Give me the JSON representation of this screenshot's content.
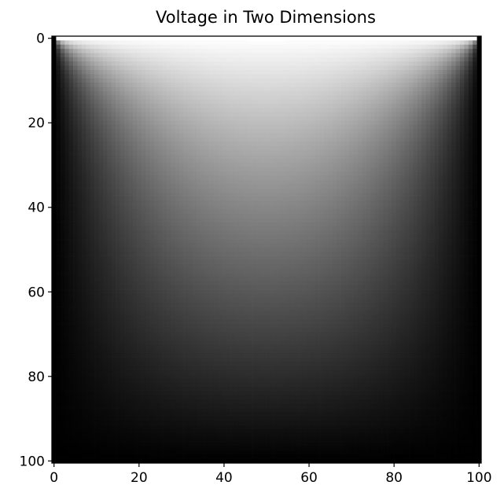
{
  "chart_data": {
    "type": "heatmap",
    "title": "Voltage in Two Dimensions",
    "xlabel": "",
    "ylabel": "",
    "colormap": "gray",
    "grid_size": [
      101,
      101
    ],
    "xlim": [
      0,
      100
    ],
    "ylim": [
      100,
      0
    ],
    "y_axis_inverted": true,
    "x_ticks": [
      0,
      20,
      40,
      60,
      80,
      100
    ],
    "y_ticks": [
      0,
      20,
      40,
      60,
      80,
      100
    ],
    "x_tick_labels": [
      "0",
      "20",
      "40",
      "60",
      "80",
      "100"
    ],
    "y_tick_labels": [
      "0",
      "20",
      "40",
      "60",
      "80",
      "100"
    ],
    "boundary_conditions": {
      "top": 1.0,
      "bottom": 0.0,
      "left": 0.0,
      "right": 0.0
    },
    "value_range": [
      0.0,
      1.0
    ]
  }
}
